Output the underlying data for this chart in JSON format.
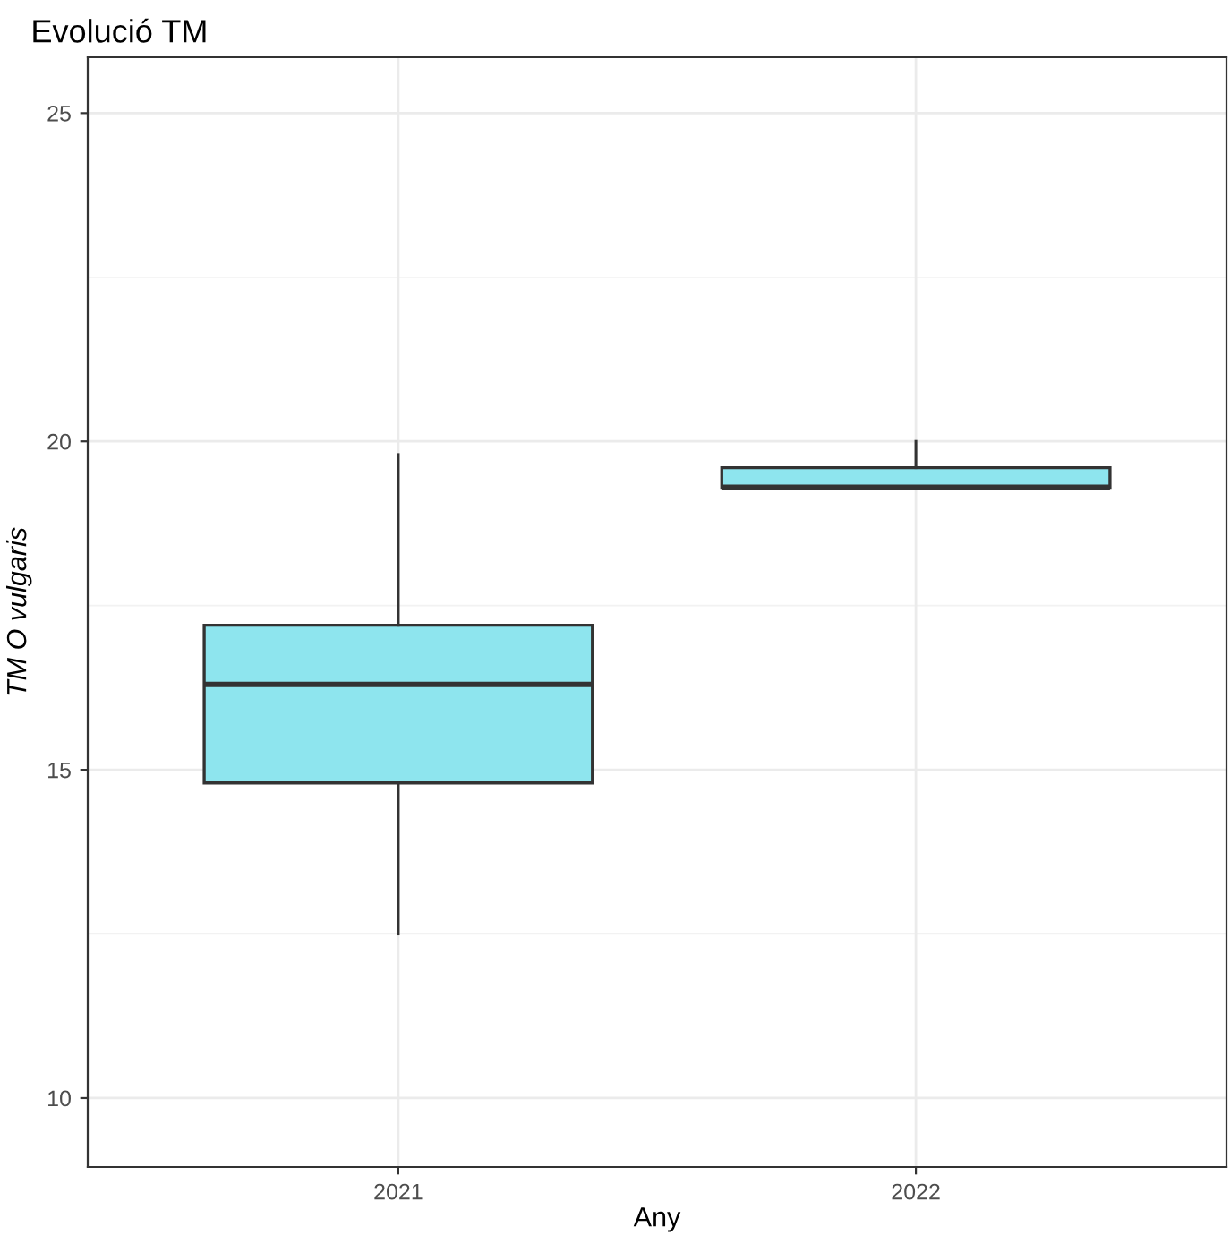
{
  "chart_data": {
    "type": "box",
    "title": "Evolució TM",
    "xlabel": "Any",
    "ylabel": "TM O vulgaris",
    "categories": [
      "2021",
      "2022"
    ],
    "series": [
      {
        "color": "#8ee5ee",
        "boxes": [
          {
            "low": 12.5,
            "q1": 14.8,
            "median": 16.3,
            "q3": 17.2,
            "high": 19.8
          },
          {
            "low": 19.3,
            "q1": 19.3,
            "median": 19.3,
            "q3": 19.6,
            "high": 20.0
          }
        ]
      }
    ],
    "ylim": [
      8.95,
      25.85
    ],
    "yticks": [
      10,
      15,
      20,
      25
    ],
    "grid": true
  }
}
